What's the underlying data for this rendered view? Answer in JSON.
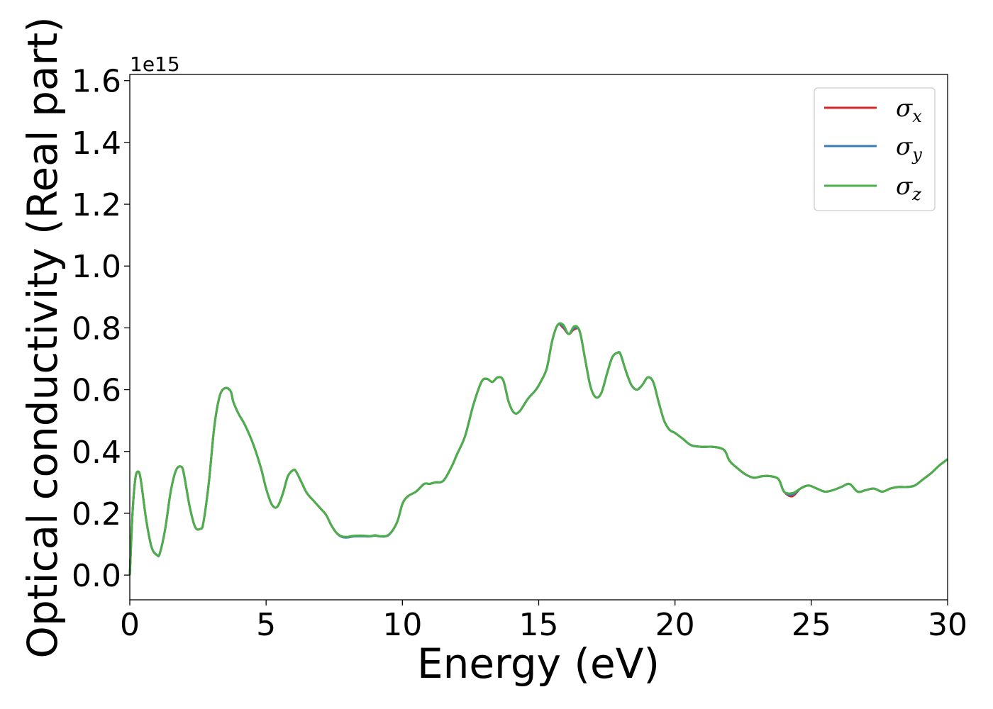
{
  "chart_data": {
    "type": "line",
    "title": "",
    "xlabel": "Energy (eV)",
    "ylabel": "Optical conductivity (Real part)",
    "y_offset_label": "1e15",
    "xlim": [
      0,
      30
    ],
    "ylim": [
      -0.08,
      1.62
    ],
    "xticks": [
      0,
      5,
      10,
      15,
      20,
      25,
      30
    ],
    "xtick_labels": [
      "0",
      "5",
      "10",
      "15",
      "20",
      "25",
      "30"
    ],
    "yticks": [
      0.0,
      0.2,
      0.4,
      0.6,
      0.8,
      1.0,
      1.2,
      1.4,
      1.6
    ],
    "ytick_labels": [
      "0.0",
      "0.2",
      "0.4",
      "0.6",
      "0.8",
      "1.0",
      "1.2",
      "1.4",
      "1.6"
    ],
    "grid": false,
    "legend_position": "top-right",
    "series": [
      {
        "name": "σx",
        "legend_symbol": "σ",
        "legend_subscript": "x",
        "color": "#d62728",
        "x": [
          0,
          0.1,
          0.2,
          0.3,
          0.4,
          0.6,
          0.8,
          1.0,
          1.1,
          1.3,
          1.5,
          1.7,
          1.9,
          2.0,
          2.2,
          2.4,
          2.6,
          2.7,
          2.9,
          3.1,
          3.3,
          3.5,
          3.7,
          3.8,
          4.0,
          4.2,
          4.5,
          4.8,
          5.0,
          5.2,
          5.4,
          5.6,
          5.8,
          6.0,
          6.1,
          6.3,
          6.5,
          6.8,
          7.0,
          7.2,
          7.4,
          7.6,
          7.8,
          8.0,
          8.2,
          8.5,
          8.8,
          9.0,
          9.2,
          9.5,
          9.8,
          10.0,
          10.2,
          10.5,
          10.8,
          11.0,
          11.2,
          11.5,
          11.8,
          12.0,
          12.3,
          12.6,
          12.9,
          13.1,
          13.3,
          13.5,
          13.7,
          13.9,
          14.1,
          14.3,
          14.6,
          14.9,
          15.1,
          15.3,
          15.5,
          15.7,
          15.9,
          16.1,
          16.3,
          16.5,
          16.7,
          16.9,
          17.1,
          17.3,
          17.5,
          17.7,
          17.9,
          18.0,
          18.2,
          18.4,
          18.6,
          18.8,
          19.0,
          19.2,
          19.4,
          19.6,
          19.8,
          20.0,
          20.3,
          20.6,
          21.0,
          21.4,
          21.8,
          22.0,
          22.3,
          22.6,
          22.9,
          23.2,
          23.5,
          23.8,
          24.0,
          24.3,
          24.6,
          24.9,
          25.2,
          25.5,
          25.8,
          26.1,
          26.4,
          26.7,
          27.0,
          27.3,
          27.6,
          27.9,
          28.2,
          28.5,
          28.8,
          29.1,
          29.4,
          29.7,
          30.0
        ],
        "values": [
          0.0,
          0.2,
          0.31,
          0.335,
          0.31,
          0.18,
          0.09,
          0.065,
          0.07,
          0.15,
          0.27,
          0.34,
          0.35,
          0.32,
          0.22,
          0.155,
          0.15,
          0.17,
          0.3,
          0.48,
          0.58,
          0.605,
          0.595,
          0.56,
          0.52,
          0.49,
          0.43,
          0.35,
          0.28,
          0.23,
          0.22,
          0.26,
          0.32,
          0.34,
          0.335,
          0.3,
          0.265,
          0.235,
          0.215,
          0.195,
          0.16,
          0.135,
          0.123,
          0.122,
          0.125,
          0.126,
          0.125,
          0.128,
          0.125,
          0.13,
          0.17,
          0.23,
          0.255,
          0.27,
          0.295,
          0.295,
          0.3,
          0.305,
          0.35,
          0.39,
          0.45,
          0.55,
          0.625,
          0.635,
          0.625,
          0.64,
          0.63,
          0.56,
          0.525,
          0.53,
          0.57,
          0.6,
          0.63,
          0.67,
          0.76,
          0.81,
          0.8,
          0.78,
          0.795,
          0.79,
          0.7,
          0.61,
          0.575,
          0.59,
          0.65,
          0.705,
          0.72,
          0.715,
          0.66,
          0.615,
          0.6,
          0.615,
          0.64,
          0.625,
          0.56,
          0.5,
          0.47,
          0.46,
          0.44,
          0.42,
          0.415,
          0.415,
          0.405,
          0.37,
          0.345,
          0.325,
          0.315,
          0.32,
          0.32,
          0.31,
          0.27,
          0.255,
          0.28,
          0.29,
          0.28,
          0.27,
          0.275,
          0.285,
          0.295,
          0.27,
          0.275,
          0.28,
          0.27,
          0.28,
          0.285,
          0.285,
          0.29,
          0.31,
          0.33,
          0.355,
          0.375
        ]
      },
      {
        "name": "σy",
        "legend_symbol": "σ",
        "legend_subscript": "y",
        "color": "#377eb8",
        "x": [
          0,
          0.1,
          0.2,
          0.3,
          0.4,
          0.6,
          0.8,
          1.0,
          1.1,
          1.3,
          1.5,
          1.7,
          1.9,
          2.0,
          2.2,
          2.4,
          2.6,
          2.7,
          2.9,
          3.1,
          3.3,
          3.5,
          3.7,
          3.8,
          4.0,
          4.2,
          4.5,
          4.8,
          5.0,
          5.2,
          5.4,
          5.6,
          5.8,
          6.0,
          6.1,
          6.3,
          6.5,
          6.8,
          7.0,
          7.2,
          7.4,
          7.6,
          7.8,
          8.0,
          8.2,
          8.5,
          8.8,
          9.0,
          9.2,
          9.5,
          9.8,
          10.0,
          10.2,
          10.5,
          10.8,
          11.0,
          11.2,
          11.5,
          11.8,
          12.0,
          12.3,
          12.6,
          12.9,
          13.1,
          13.3,
          13.5,
          13.7,
          13.9,
          14.1,
          14.3,
          14.6,
          14.9,
          15.1,
          15.3,
          15.5,
          15.7,
          15.9,
          16.1,
          16.3,
          16.5,
          16.7,
          16.9,
          17.1,
          17.3,
          17.5,
          17.7,
          17.9,
          18.0,
          18.2,
          18.4,
          18.6,
          18.8,
          19.0,
          19.2,
          19.4,
          19.6,
          19.8,
          20.0,
          20.3,
          20.6,
          21.0,
          21.4,
          21.8,
          22.0,
          22.3,
          22.6,
          22.9,
          23.2,
          23.5,
          23.8,
          24.0,
          24.3,
          24.6,
          24.9,
          25.2,
          25.5,
          25.8,
          26.1,
          26.4,
          26.7,
          27.0,
          27.3,
          27.6,
          27.9,
          28.2,
          28.5,
          28.8,
          29.1,
          29.4,
          29.7,
          30.0
        ],
        "values": [
          0.0,
          0.2,
          0.31,
          0.335,
          0.31,
          0.18,
          0.09,
          0.065,
          0.07,
          0.15,
          0.27,
          0.34,
          0.35,
          0.32,
          0.22,
          0.155,
          0.15,
          0.17,
          0.3,
          0.48,
          0.58,
          0.605,
          0.595,
          0.56,
          0.52,
          0.49,
          0.43,
          0.35,
          0.28,
          0.23,
          0.22,
          0.26,
          0.32,
          0.34,
          0.335,
          0.3,
          0.265,
          0.235,
          0.215,
          0.195,
          0.16,
          0.135,
          0.123,
          0.122,
          0.125,
          0.126,
          0.125,
          0.128,
          0.125,
          0.13,
          0.17,
          0.23,
          0.255,
          0.27,
          0.295,
          0.295,
          0.3,
          0.305,
          0.35,
          0.39,
          0.45,
          0.55,
          0.625,
          0.635,
          0.625,
          0.64,
          0.63,
          0.56,
          0.525,
          0.53,
          0.57,
          0.6,
          0.63,
          0.67,
          0.76,
          0.81,
          0.805,
          0.78,
          0.8,
          0.79,
          0.7,
          0.61,
          0.575,
          0.59,
          0.65,
          0.705,
          0.72,
          0.715,
          0.66,
          0.615,
          0.6,
          0.615,
          0.64,
          0.625,
          0.56,
          0.5,
          0.47,
          0.46,
          0.44,
          0.42,
          0.415,
          0.415,
          0.405,
          0.37,
          0.345,
          0.325,
          0.315,
          0.32,
          0.32,
          0.31,
          0.27,
          0.26,
          0.28,
          0.29,
          0.28,
          0.27,
          0.275,
          0.285,
          0.295,
          0.27,
          0.275,
          0.28,
          0.27,
          0.28,
          0.285,
          0.285,
          0.29,
          0.31,
          0.33,
          0.355,
          0.375
        ]
      },
      {
        "name": "σz",
        "legend_symbol": "σ",
        "legend_subscript": "z",
        "color": "#4daf4a",
        "x": [
          0,
          0.1,
          0.2,
          0.3,
          0.4,
          0.6,
          0.8,
          1.0,
          1.1,
          1.3,
          1.5,
          1.7,
          1.9,
          2.0,
          2.2,
          2.4,
          2.6,
          2.7,
          2.9,
          3.1,
          3.3,
          3.5,
          3.7,
          3.8,
          4.0,
          4.2,
          4.5,
          4.8,
          5.0,
          5.2,
          5.4,
          5.6,
          5.8,
          6.0,
          6.1,
          6.3,
          6.5,
          6.8,
          7.0,
          7.2,
          7.4,
          7.6,
          7.8,
          8.0,
          8.2,
          8.5,
          8.8,
          9.0,
          9.2,
          9.5,
          9.8,
          10.0,
          10.2,
          10.5,
          10.8,
          11.0,
          11.2,
          11.5,
          11.8,
          12.0,
          12.3,
          12.6,
          12.9,
          13.1,
          13.3,
          13.5,
          13.7,
          13.9,
          14.1,
          14.3,
          14.6,
          14.9,
          15.1,
          15.3,
          15.5,
          15.7,
          15.9,
          16.1,
          16.3,
          16.5,
          16.7,
          16.9,
          17.1,
          17.3,
          17.5,
          17.7,
          17.9,
          18.0,
          18.2,
          18.4,
          18.6,
          18.8,
          19.0,
          19.2,
          19.4,
          19.6,
          19.8,
          20.0,
          20.3,
          20.6,
          21.0,
          21.4,
          21.8,
          22.0,
          22.3,
          22.6,
          22.9,
          23.2,
          23.5,
          23.8,
          24.0,
          24.3,
          24.6,
          24.9,
          25.2,
          25.5,
          25.8,
          26.1,
          26.4,
          26.7,
          27.0,
          27.3,
          27.6,
          27.9,
          28.2,
          28.5,
          28.8,
          29.1,
          29.4,
          29.7,
          30.0
        ],
        "values": [
          0.0,
          0.2,
          0.31,
          0.335,
          0.31,
          0.18,
          0.09,
          0.065,
          0.07,
          0.15,
          0.27,
          0.34,
          0.35,
          0.32,
          0.22,
          0.155,
          0.15,
          0.17,
          0.3,
          0.48,
          0.58,
          0.605,
          0.595,
          0.56,
          0.52,
          0.49,
          0.43,
          0.35,
          0.28,
          0.23,
          0.22,
          0.26,
          0.32,
          0.34,
          0.335,
          0.3,
          0.265,
          0.235,
          0.215,
          0.195,
          0.16,
          0.135,
          0.125,
          0.124,
          0.127,
          0.128,
          0.126,
          0.129,
          0.126,
          0.131,
          0.17,
          0.23,
          0.255,
          0.27,
          0.295,
          0.295,
          0.3,
          0.305,
          0.35,
          0.39,
          0.45,
          0.55,
          0.625,
          0.635,
          0.625,
          0.64,
          0.63,
          0.56,
          0.525,
          0.53,
          0.57,
          0.6,
          0.63,
          0.67,
          0.76,
          0.81,
          0.81,
          0.78,
          0.805,
          0.79,
          0.7,
          0.61,
          0.575,
          0.59,
          0.65,
          0.705,
          0.72,
          0.715,
          0.66,
          0.615,
          0.6,
          0.615,
          0.64,
          0.625,
          0.56,
          0.5,
          0.47,
          0.46,
          0.44,
          0.42,
          0.415,
          0.415,
          0.405,
          0.37,
          0.345,
          0.325,
          0.315,
          0.32,
          0.32,
          0.31,
          0.27,
          0.265,
          0.28,
          0.29,
          0.28,
          0.27,
          0.275,
          0.285,
          0.295,
          0.27,
          0.275,
          0.28,
          0.27,
          0.28,
          0.285,
          0.285,
          0.29,
          0.31,
          0.33,
          0.355,
          0.375
        ]
      }
    ]
  }
}
